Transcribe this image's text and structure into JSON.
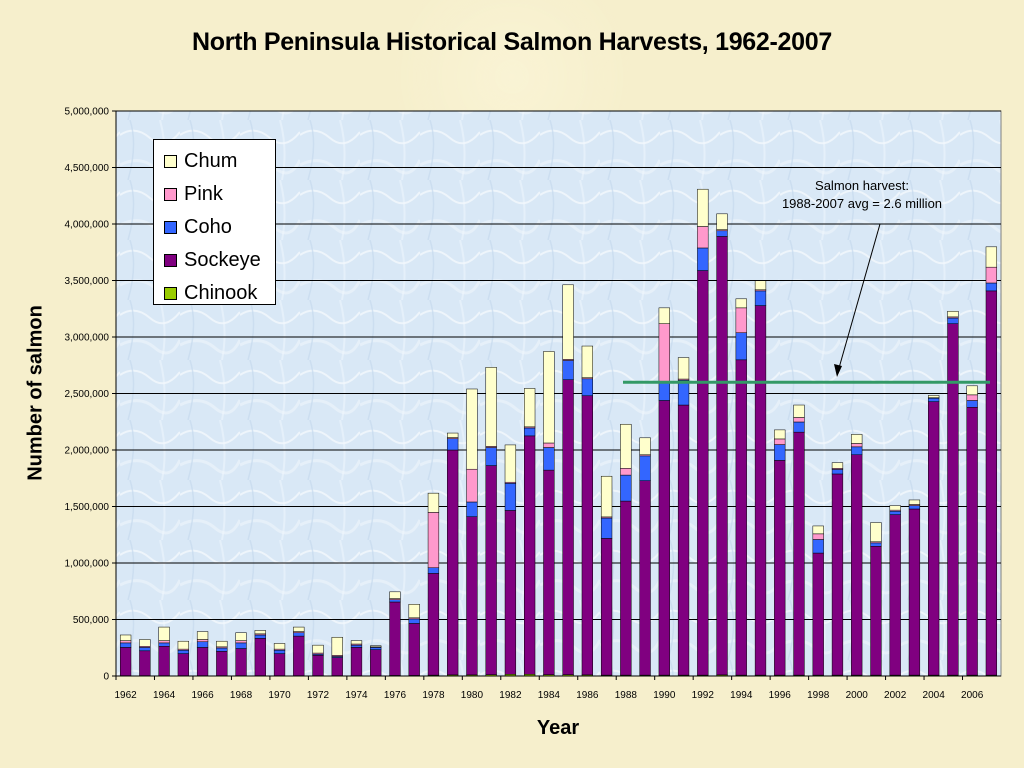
{
  "chart_data": {
    "type": "bar",
    "stacked": true,
    "title": "North Peninsula Historical Salmon Harvests, 1962-2007",
    "xlabel": "Year",
    "ylabel": "Number of salmon",
    "ylim": [
      0,
      5000000
    ],
    "yticks": [
      "0",
      "500,000",
      "1,000,000",
      "1,500,000",
      "2,000,000",
      "2,500,000",
      "3,000,000",
      "3,500,000",
      "4,000,000",
      "4,500,000",
      "5,000,000"
    ],
    "xtick_labels": [
      "1962",
      "1964",
      "1966",
      "1968",
      "1970",
      "1972",
      "1974",
      "1976",
      "1978",
      "1980",
      "1982",
      "1984",
      "1986",
      "1988",
      "1990",
      "1992",
      "1994",
      "1996",
      "1998",
      "2000",
      "2002",
      "2004",
      "2006"
    ],
    "grid": true,
    "legend_position": "top-left",
    "categories": [
      "1962",
      "1963",
      "1964",
      "1965",
      "1966",
      "1967",
      "1968",
      "1969",
      "1970",
      "1971",
      "1972",
      "1973",
      "1974",
      "1975",
      "1976",
      "1977",
      "1978",
      "1979",
      "1980",
      "1981",
      "1982",
      "1983",
      "1984",
      "1985",
      "1986",
      "1987",
      "1988",
      "1989",
      "1990",
      "1991",
      "1992",
      "1993",
      "1994",
      "1995",
      "1996",
      "1997",
      "1998",
      "1999",
      "2000",
      "2001",
      "2002",
      "2003",
      "2004",
      "2005",
      "2006",
      "2007"
    ],
    "series": [
      {
        "name": "Chinook",
        "color": "#99cc00",
        "values": [
          3000,
          3000,
          3000,
          3000,
          3000,
          3000,
          3000,
          3000,
          3000,
          3000,
          3000,
          3000,
          3000,
          3000,
          5000,
          5000,
          8000,
          10000,
          10000,
          12000,
          15000,
          15000,
          12000,
          12000,
          10000,
          8000,
          8000,
          8000,
          8000,
          8000,
          8000,
          10000,
          8000,
          8000,
          8000,
          8000,
          8000,
          8000,
          8000,
          8000,
          8000,
          8000,
          8000,
          8000,
          8000,
          8000
        ]
      },
      {
        "name": "Sockeye",
        "color": "#800080",
        "values": [
          250000,
          220000,
          260000,
          195000,
          250000,
          215000,
          240000,
          330000,
          195000,
          350000,
          180000,
          160000,
          250000,
          230000,
          650000,
          460000,
          900000,
          1990000,
          1400000,
          1850000,
          1450000,
          2110000,
          1810000,
          2610000,
          2470000,
          1210000,
          1540000,
          1720000,
          2430000,
          2390000,
          3580000,
          3880000,
          2790000,
          3270000,
          1900000,
          2150000,
          1080000,
          1780000,
          1950000,
          1140000,
          1420000,
          1470000,
          2420000,
          3110000,
          2370000,
          3400000
        ]
      },
      {
        "name": "Coho",
        "color": "#3366ff",
        "values": [
          40000,
          30000,
          30000,
          30000,
          50000,
          30000,
          50000,
          30000,
          30000,
          30000,
          10000,
          10000,
          20000,
          20000,
          20000,
          40000,
          50000,
          100000,
          130000,
          160000,
          240000,
          70000,
          200000,
          170000,
          150000,
          180000,
          230000,
          220000,
          170000,
          220000,
          200000,
          50000,
          240000,
          130000,
          140000,
          90000,
          120000,
          40000,
          70000,
          30000,
          30000,
          30000,
          30000,
          50000,
          60000,
          70000
        ]
      },
      {
        "name": "Pink",
        "color": "#ff99cc",
        "values": [
          20000,
          10000,
          20000,
          10000,
          20000,
          10000,
          20000,
          10000,
          10000,
          10000,
          10000,
          10000,
          10000,
          5000,
          10000,
          10000,
          490000,
          10000,
          290000,
          10000,
          10000,
          10000,
          40000,
          10000,
          10000,
          10000,
          60000,
          10000,
          510000,
          10000,
          190000,
          10000,
          220000,
          10000,
          50000,
          40000,
          50000,
          10000,
          30000,
          10000,
          10000,
          10000,
          5000,
          10000,
          50000,
          140000
        ]
      },
      {
        "name": "Chum",
        "color": "#ffffcc",
        "values": [
          50000,
          60000,
          120000,
          70000,
          70000,
          50000,
          70000,
          30000,
          50000,
          40000,
          70000,
          160000,
          30000,
          10000,
          60000,
          120000,
          170000,
          40000,
          710000,
          700000,
          330000,
          340000,
          810000,
          660000,
          280000,
          360000,
          390000,
          150000,
          140000,
          190000,
          330000,
          140000,
          80000,
          80000,
          80000,
          110000,
          70000,
          50000,
          80000,
          170000,
          40000,
          40000,
          20000,
          50000,
          80000,
          180000
        ]
      }
    ],
    "reference_line": {
      "value": 2600000,
      "color": "#339966"
    },
    "annotation": [
      "Salmon harvest:",
      "1988-2007 avg = 2.6 million"
    ]
  }
}
